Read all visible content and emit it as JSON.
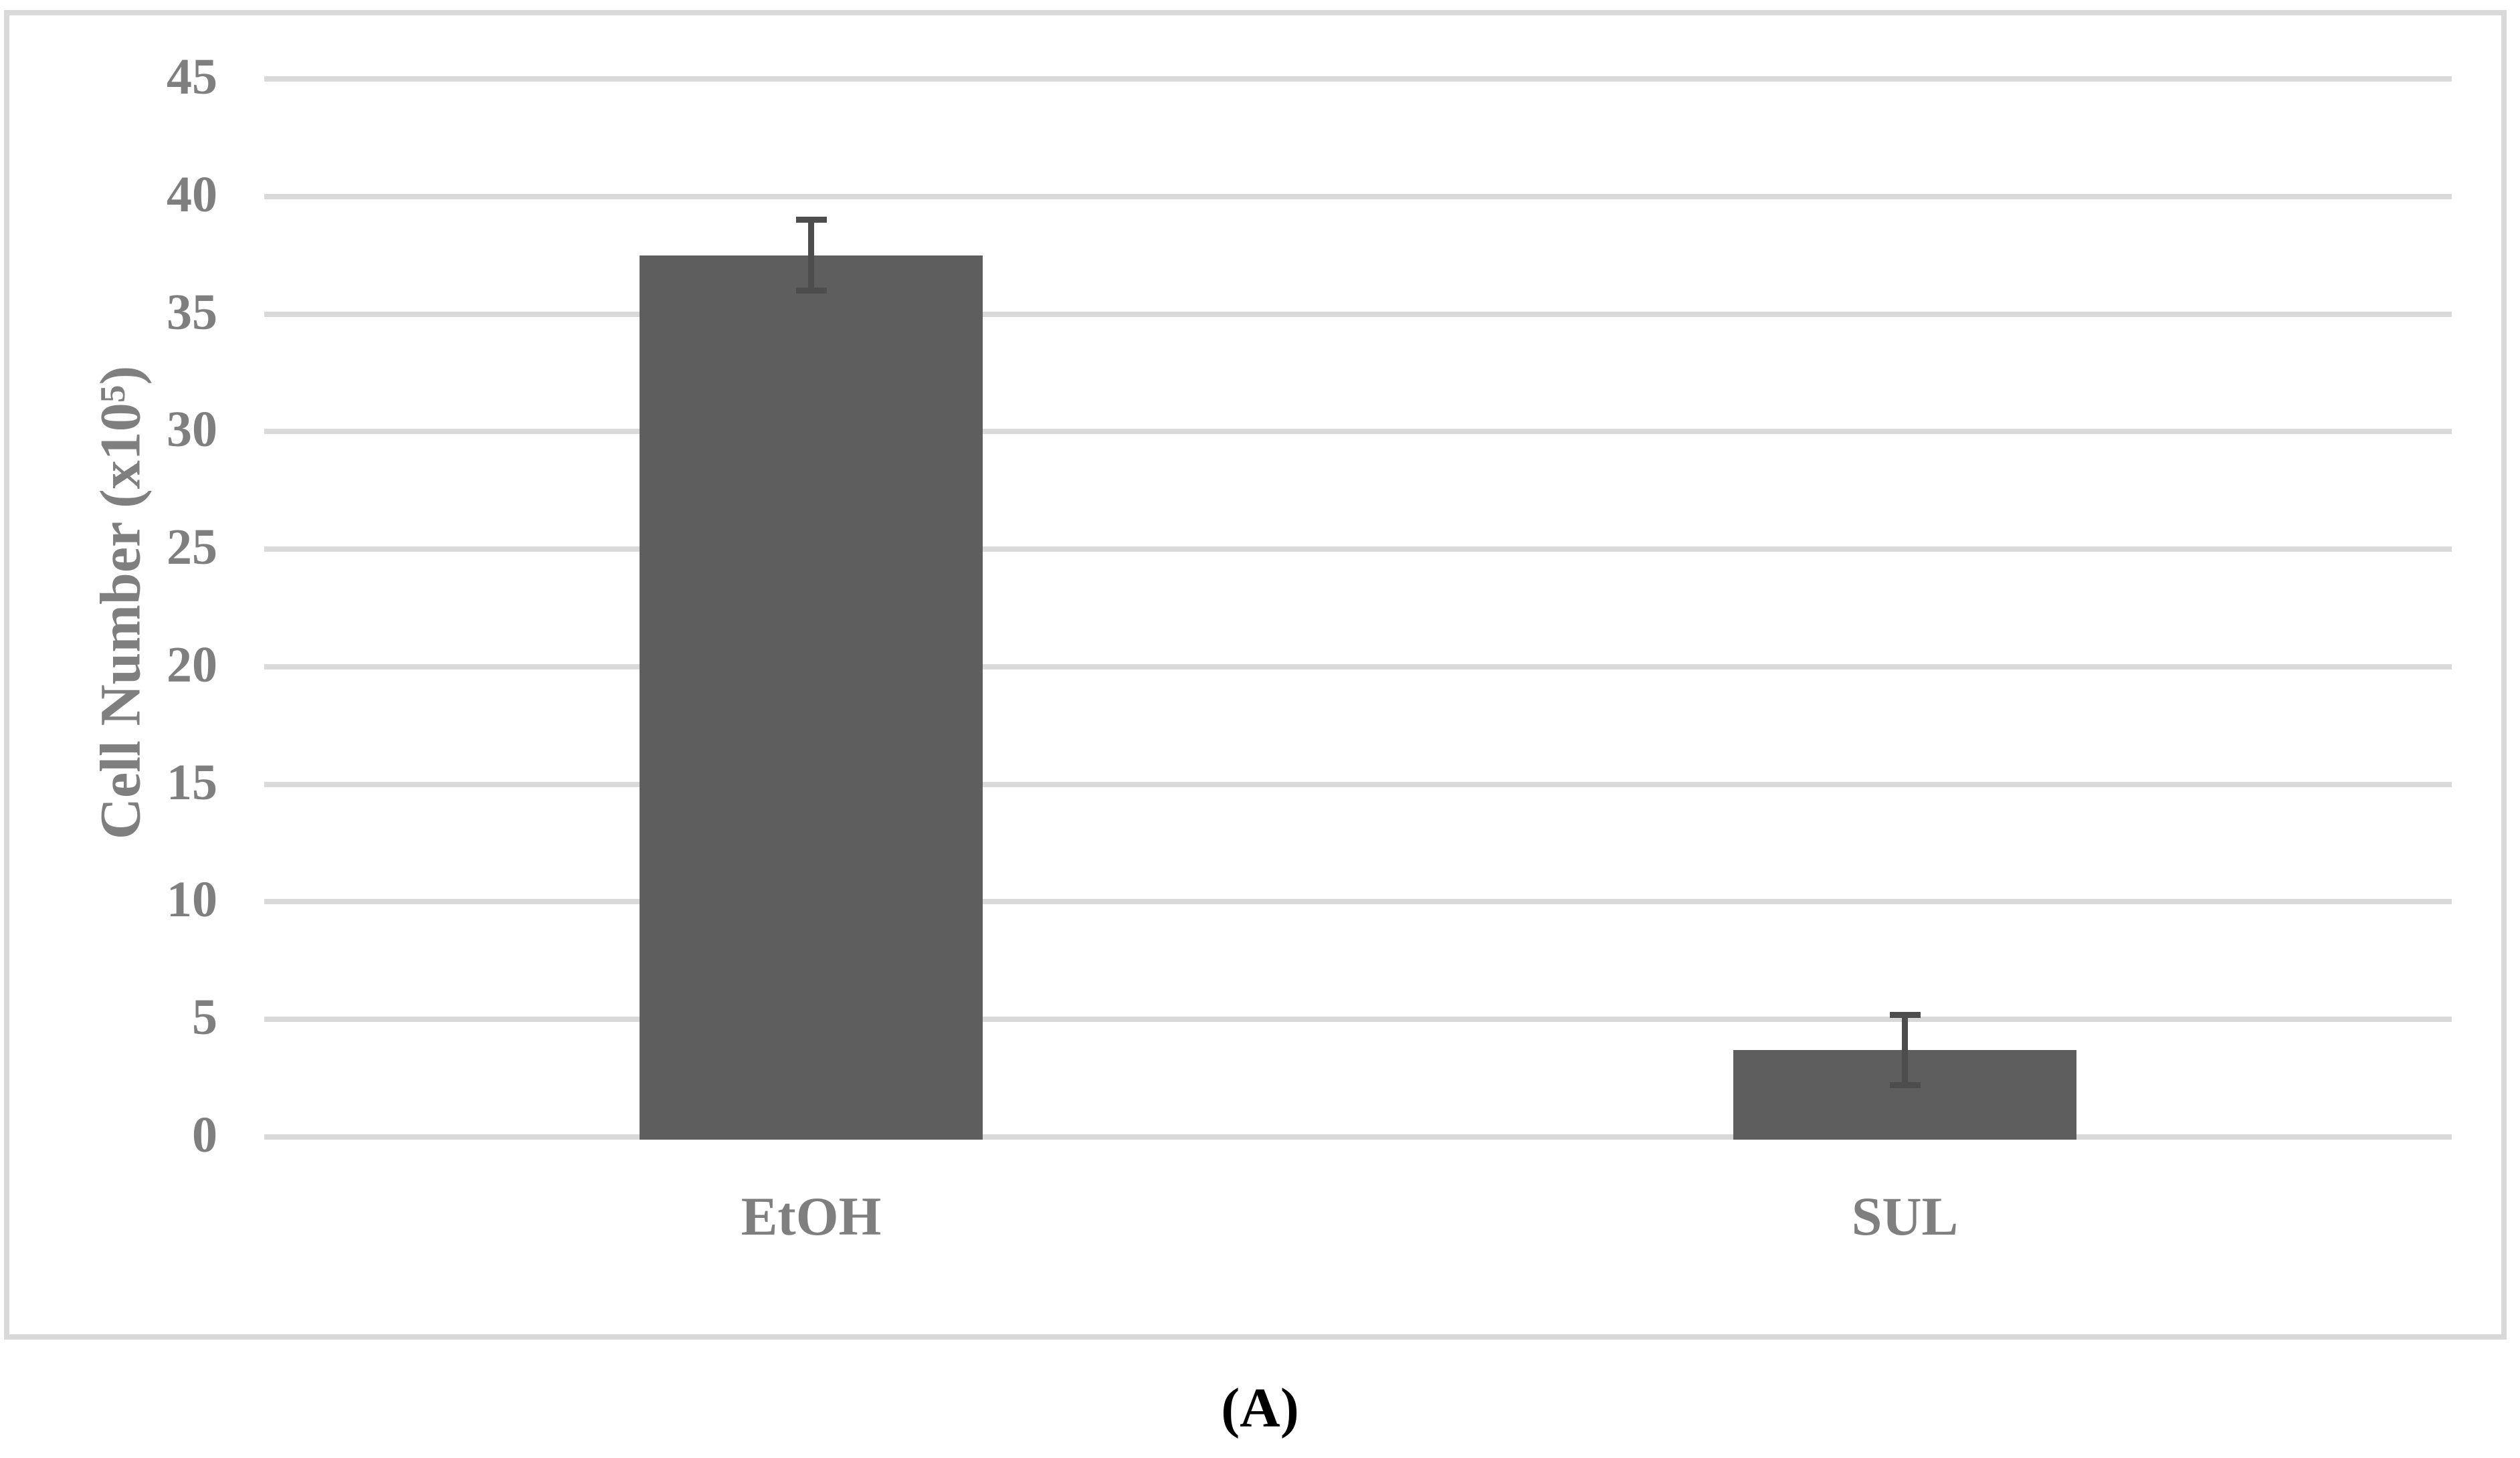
{
  "figure": {
    "caption": "(A)"
  },
  "chart_data": {
    "type": "bar",
    "title": "",
    "categories": [
      "EtOH",
      "SUL"
    ],
    "values": [
      37.5,
      3.7
    ],
    "error_plus": [
      1.5,
      1.5
    ],
    "error_minus": [
      1.5,
      1.5
    ],
    "xlabel": "",
    "ylabel": "Cell Number (x10⁵)",
    "y_axis": {
      "title_base": "Cell Number (x10",
      "title_sup": "5",
      "title_close": ")",
      "ticks": [
        0,
        5,
        10,
        15,
        20,
        25,
        30,
        35,
        40,
        45
      ],
      "range": [
        0,
        45
      ]
    },
    "grid": "horizontal",
    "legend_position": "none",
    "colors": {
      "bar_fill": "#5e5e5e",
      "error_bar": "#4d4d4d",
      "gridline": "#d9d9d9",
      "frame_border": "#d9d9d9",
      "axis_text": "#7f7f7f",
      "caption_text": "#000000",
      "background": "#ffffff"
    }
  }
}
